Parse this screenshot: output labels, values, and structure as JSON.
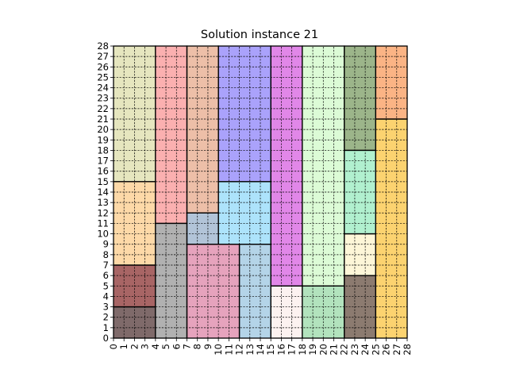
{
  "chart_data": {
    "type": "rect-packing",
    "title": "Solution instance 21",
    "xlabel": "",
    "ylabel": "",
    "xlim": [
      0,
      28
    ],
    "ylim": [
      0,
      28
    ],
    "grid": true,
    "x_ticks": [
      "0",
      "1",
      "2",
      "3",
      "4",
      "5",
      "6",
      "7",
      "8",
      "9",
      "10",
      "11",
      "12",
      "13",
      "14",
      "15",
      "16",
      "17",
      "18",
      "19",
      "20",
      "21",
      "22",
      "23",
      "24",
      "25",
      "26",
      "27",
      "28"
    ],
    "y_ticks": [
      "0",
      "1",
      "2",
      "3",
      "4",
      "5",
      "6",
      "7",
      "8",
      "9",
      "10",
      "11",
      "12",
      "13",
      "14",
      "15",
      "16",
      "17",
      "18",
      "19",
      "20",
      "21",
      "22",
      "23",
      "24",
      "25",
      "26",
      "27",
      "28"
    ],
    "rectangles": [
      {
        "x": 0,
        "y": 0,
        "w": 4,
        "h": 3,
        "color": "#7f6a6a"
      },
      {
        "x": 0,
        "y": 3,
        "w": 4,
        "h": 4,
        "color": "#a86565"
      },
      {
        "x": 0,
        "y": 7,
        "w": 4,
        "h": 8,
        "color": "#fdd9a8"
      },
      {
        "x": 0,
        "y": 15,
        "w": 4,
        "h": 13,
        "color": "#e6e6bf"
      },
      {
        "x": 4,
        "y": 0,
        "w": 3,
        "h": 11,
        "color": "#b1b1b1"
      },
      {
        "x": 4,
        "y": 11,
        "w": 3,
        "h": 17,
        "color": "#fbb0b0"
      },
      {
        "x": 7,
        "y": 0,
        "w": 5,
        "h": 9,
        "color": "#e6a3bd"
      },
      {
        "x": 7,
        "y": 9,
        "w": 3,
        "h": 3,
        "color": "#b2c4d8"
      },
      {
        "x": 7,
        "y": 12,
        "w": 3,
        "h": 16,
        "color": "#edbfa8"
      },
      {
        "x": 10,
        "y": 9,
        "w": 5,
        "h": 6,
        "color": "#ade3fb"
      },
      {
        "x": 10,
        "y": 15,
        "w": 5,
        "h": 13,
        "color": "#aaa2fb"
      },
      {
        "x": 12,
        "y": 0,
        "w": 3,
        "h": 9,
        "color": "#b4d4e8"
      },
      {
        "x": 15,
        "y": 0,
        "w": 3,
        "h": 5,
        "color": "#fcf2f0"
      },
      {
        "x": 15,
        "y": 5,
        "w": 3,
        "h": 23,
        "color": "#e187e8"
      },
      {
        "x": 18,
        "y": 0,
        "w": 4,
        "h": 5,
        "color": "#b2e3bd"
      },
      {
        "x": 18,
        "y": 5,
        "w": 4,
        "h": 23,
        "color": "#dcfbd6"
      },
      {
        "x": 22,
        "y": 0,
        "w": 3,
        "h": 6,
        "color": "#8c7b70"
      },
      {
        "x": 22,
        "y": 6,
        "w": 3,
        "h": 4,
        "color": "#fdf6d8"
      },
      {
        "x": 22,
        "y": 10,
        "w": 3,
        "h": 8,
        "color": "#b1f0cf"
      },
      {
        "x": 22,
        "y": 18,
        "w": 3,
        "h": 10,
        "color": "#9cb58a"
      },
      {
        "x": 25,
        "y": 0,
        "w": 3,
        "h": 21,
        "color": "#fcd370"
      },
      {
        "x": 25,
        "y": 21,
        "w": 3,
        "h": 7,
        "color": "#fbb485"
      }
    ]
  }
}
